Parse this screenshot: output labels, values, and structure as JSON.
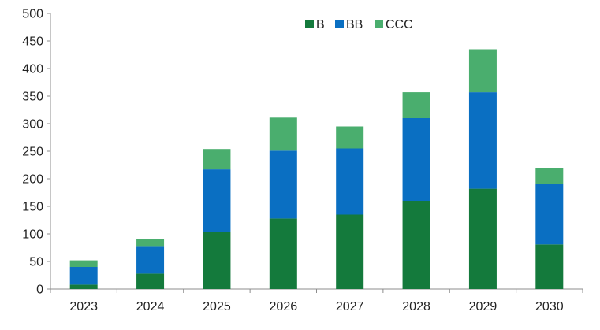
{
  "chart_data": {
    "type": "bar",
    "stacked": true,
    "title": "",
    "xlabel": "",
    "ylabel": "",
    "categories": [
      "2023",
      "2024",
      "2025",
      "2026",
      "2027",
      "2028",
      "2029",
      "2030"
    ],
    "ylim": [
      0,
      500
    ],
    "yticks": [
      0,
      50,
      100,
      150,
      200,
      250,
      300,
      350,
      400,
      450,
      500
    ],
    "grid": false,
    "legend_position": "top",
    "series": [
      {
        "name": "B",
        "color": "#147a3c",
        "values": [
          8,
          28,
          104,
          128,
          135,
          160,
          182,
          81
        ]
      },
      {
        "name": "BB",
        "color": "#0a6fc2",
        "values": [
          32,
          50,
          113,
          123,
          120,
          150,
          175,
          109
        ]
      },
      {
        "name": "CCC",
        "color": "#4aae6e",
        "values": [
          12,
          13,
          37,
          60,
          40,
          47,
          78,
          30
        ]
      }
    ]
  }
}
